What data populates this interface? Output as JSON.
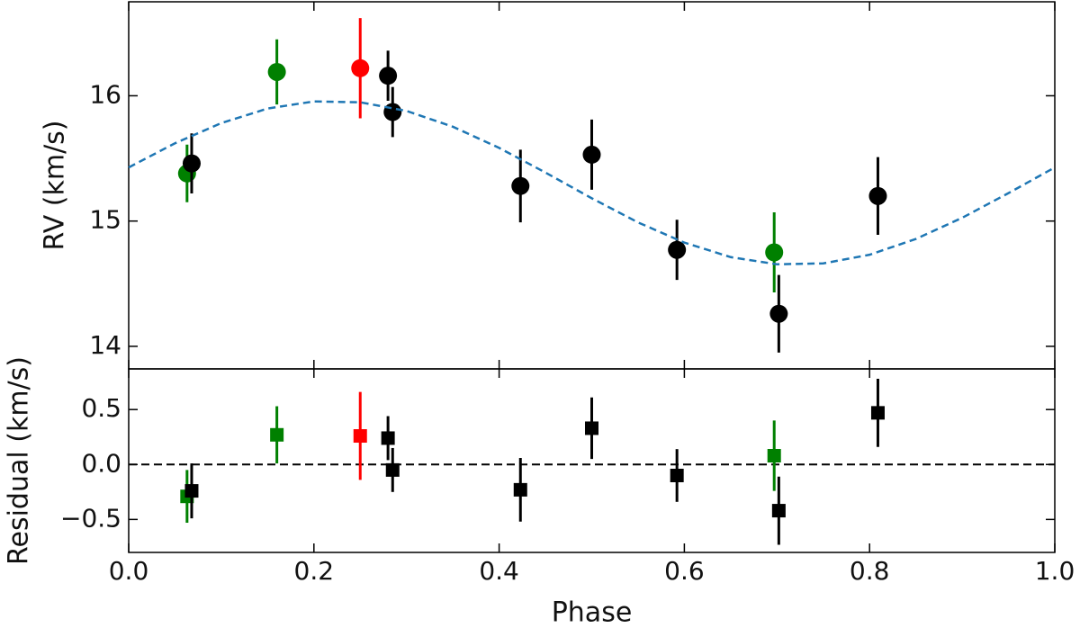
{
  "chart_data": [
    {
      "type": "scatter",
      "ylabel": "RV (km/s)",
      "xlim": [
        0,
        1
      ],
      "ylim": [
        13.82,
        16.75
      ],
      "xticks": [
        0,
        0.2,
        0.4,
        0.6,
        0.8,
        1
      ],
      "yticks": [
        14,
        15,
        16
      ],
      "marker": "o",
      "series": [
        {
          "color": "#008000",
          "x": [
            0.063,
            0.16,
            0.697
          ],
          "values": [
            15.38,
            16.19,
            14.75
          ],
          "errors": [
            0.23,
            0.26,
            0.32
          ]
        },
        {
          "color": "#ff0000",
          "x": [
            0.25
          ],
          "values": [
            16.22
          ],
          "errors": [
            0.4
          ]
        },
        {
          "color": "#000000",
          "x": [
            0.068,
            0.28,
            0.285,
            0.423,
            0.5,
            0.592,
            0.702,
            0.809
          ],
          "values": [
            15.46,
            16.16,
            15.87,
            15.28,
            15.53,
            14.77,
            14.26,
            15.2
          ],
          "errors": [
            0.24,
            0.2,
            0.2,
            0.29,
            0.28,
            0.24,
            0.31,
            0.31
          ]
        },
        {
          "color": "#1f77b4",
          "style": "dashed",
          "x": [
            0,
            0.05,
            0.1,
            0.15,
            0.2,
            0.25,
            0.3,
            0.35,
            0.4,
            0.45,
            0.5,
            0.55,
            0.6,
            0.65,
            0.7,
            0.75,
            0.8,
            0.85,
            0.9,
            0.95,
            1
          ],
          "values": [
            15.428,
            15.621,
            15.782,
            15.898,
            15.955,
            15.948,
            15.879,
            15.753,
            15.584,
            15.387,
            15.182,
            14.989,
            14.828,
            14.712,
            14.655,
            14.662,
            14.731,
            14.857,
            15.026,
            15.223,
            15.428
          ]
        }
      ]
    },
    {
      "type": "scatter",
      "xlabel": "Phase",
      "ylabel": "Residual (km/s)",
      "xlim": [
        0,
        1
      ],
      "ylim": [
        -0.8,
        0.87
      ],
      "xticks": [
        {
          "value": 0,
          "label": "0.0"
        },
        0.2,
        0.4,
        0.6,
        0.8,
        {
          "value": 1,
          "label": "1.0"
        }
      ],
      "yticks": [
        {
          "value": -0.5,
          "label": "−0.5"
        },
        {
          "value": 0,
          "label": "0.0"
        },
        0.5
      ],
      "marker": "s",
      "hline": 0,
      "series": [
        {
          "color": "#008000",
          "x": [
            0.063,
            0.16,
            0.697
          ],
          "values": [
            -0.29,
            0.27,
            0.08
          ],
          "errors": [
            0.24,
            0.26,
            0.32
          ]
        },
        {
          "color": "#ff0000",
          "x": [
            0.25
          ],
          "values": [
            0.26
          ],
          "errors": [
            0.4
          ]
        },
        {
          "color": "#000000",
          "x": [
            0.068,
            0.28,
            0.285,
            0.423,
            0.5,
            0.592,
            0.702,
            0.809
          ],
          "values": [
            -0.24,
            0.24,
            -0.05,
            -0.23,
            0.33,
            -0.1,
            -0.42,
            0.47
          ],
          "errors": [
            0.25,
            0.2,
            0.2,
            0.29,
            0.28,
            0.24,
            0.31,
            0.31
          ]
        }
      ]
    }
  ]
}
